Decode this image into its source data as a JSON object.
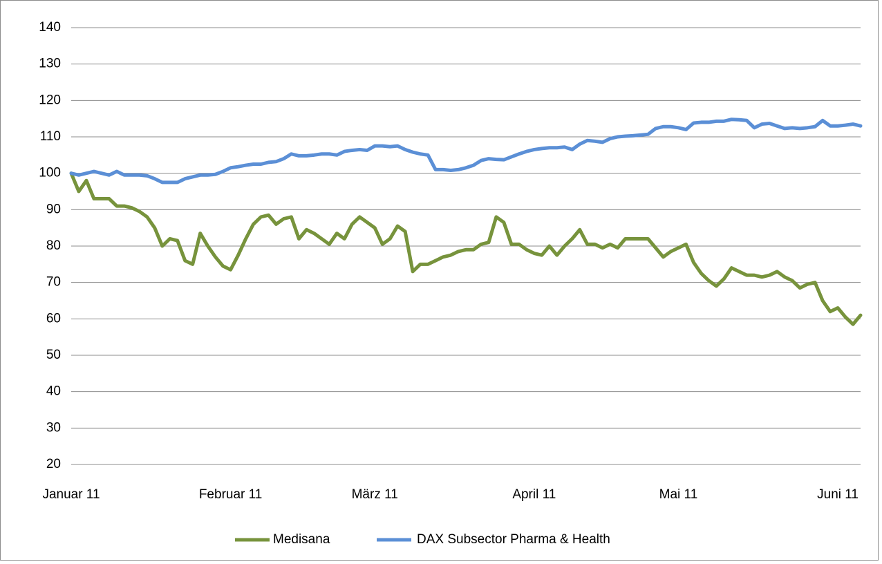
{
  "chart_data": {
    "type": "line",
    "categories": [
      "Januar 11",
      null,
      null,
      null,
      null,
      null,
      null,
      null,
      null,
      null,
      null,
      null,
      null,
      null,
      null,
      null,
      null,
      null,
      null,
      null,
      null,
      "Februar 11",
      null,
      null,
      null,
      null,
      null,
      null,
      null,
      null,
      null,
      null,
      null,
      null,
      null,
      null,
      null,
      null,
      null,
      null,
      "März 11",
      null,
      null,
      null,
      null,
      null,
      null,
      null,
      null,
      null,
      null,
      null,
      null,
      null,
      null,
      null,
      null,
      null,
      null,
      null,
      null,
      "April 11",
      null,
      null,
      null,
      null,
      null,
      null,
      null,
      null,
      null,
      null,
      null,
      null,
      null,
      null,
      null,
      null,
      null,
      null,
      "Mai 11",
      null,
      null,
      null,
      null,
      null,
      null,
      null,
      null,
      null,
      null,
      null,
      null,
      null,
      null,
      null,
      null,
      null,
      null,
      null,
      null,
      "Juni 11",
      null,
      null,
      null
    ],
    "series": [
      {
        "name": "Medisana",
        "color": "#77933c",
        "values": [
          100,
          95,
          98,
          93,
          93,
          93,
          91,
          91,
          90.5,
          89.5,
          88,
          85,
          80,
          82,
          81.5,
          76,
          75,
          83.5,
          80,
          77,
          74.5,
          73.5,
          77.5,
          82,
          86,
          88,
          88.5,
          86,
          87.5,
          88,
          82,
          84.5,
          83.5,
          82,
          80.5,
          83.5,
          82,
          86,
          88,
          86.5,
          85,
          80.5,
          82,
          85.5,
          84,
          73,
          75,
          75,
          76,
          77,
          77.5,
          78.5,
          79,
          79,
          80.5,
          81,
          88,
          86.5,
          80.5,
          80.5,
          79,
          78,
          77.5,
          80,
          77.5,
          80,
          82,
          84.5,
          80.5,
          80.5,
          79.5,
          80.5,
          79.5,
          82,
          82,
          82,
          82,
          79.5,
          77,
          78.5,
          79.5,
          80.5,
          75.5,
          72.5,
          70.5,
          69,
          71,
          74,
          73,
          72,
          72,
          71.5,
          72,
          73,
          71.5,
          70.5,
          68.5,
          69.5,
          70,
          65,
          62,
          63,
          60.5,
          58.5,
          61
        ]
      },
      {
        "name": "DAX Subsector Pharma & Health",
        "color": "#5b8fd6",
        "values": [
          100,
          99.5,
          100,
          100.5,
          100,
          99.5,
          100.5,
          99.5,
          99.5,
          99.5,
          99.3,
          98.5,
          97.5,
          97.5,
          97.5,
          98.5,
          99,
          99.5,
          99.5,
          99.7,
          100.5,
          101.5,
          101.8,
          102.2,
          102.5,
          102.5,
          103,
          103.2,
          104,
          105.3,
          104.8,
          104.8,
          105,
          105.3,
          105.3,
          105,
          106,
          106.3,
          106.5,
          106.3,
          107.5,
          107.5,
          107.3,
          107.5,
          106.5,
          105.8,
          105.3,
          105,
          101,
          101,
          100.8,
          101,
          101.5,
          102.2,
          103.5,
          104,
          103.8,
          103.7,
          104.5,
          105.3,
          106,
          106.5,
          106.8,
          107,
          107,
          107.2,
          106.5,
          108,
          109,
          108.8,
          108.5,
          109.5,
          110,
          110.2,
          110.3,
          110.5,
          110.7,
          112.3,
          112.8,
          112.8,
          112.5,
          112,
          113.8,
          114,
          114,
          114.3,
          114.3,
          114.8,
          114.7,
          114.5,
          112.5,
          113.5,
          113.7,
          113,
          112.3,
          112.5,
          112.3,
          112.5,
          112.8,
          114.5,
          113,
          113,
          113.2,
          113.5,
          113
        ]
      }
    ],
    "ylim": [
      20,
      140
    ],
    "yticks": [
      20,
      30,
      40,
      50,
      60,
      70,
      80,
      90,
      100,
      110,
      120,
      130,
      140
    ],
    "grid": true,
    "legend": "bottom"
  }
}
